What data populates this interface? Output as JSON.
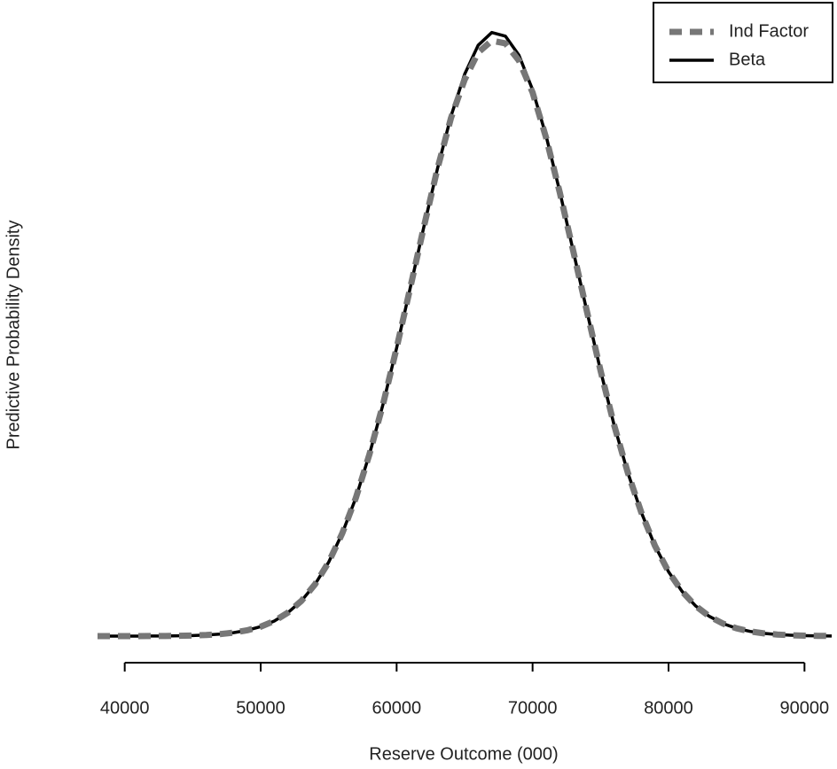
{
  "chart_data": {
    "type": "line",
    "x_label": "Reserve Outcome (000)",
    "y_label": "Predictive Probability Density",
    "x": [
      38000,
      39000,
      40000,
      41000,
      42000,
      43000,
      44000,
      45000,
      46000,
      47000,
      48000,
      49000,
      50000,
      51000,
      52000,
      53000,
      54000,
      55000,
      56000,
      57000,
      58000,
      59000,
      60000,
      61000,
      62000,
      63000,
      64000,
      65000,
      66000,
      67000,
      68000,
      69000,
      70000,
      71000,
      72000,
      73000,
      74000,
      75000,
      76000,
      77000,
      78000,
      79000,
      80000,
      81000,
      82000,
      83000,
      84000,
      85000,
      86000,
      87000,
      88000,
      89000,
      90000,
      91000,
      92000
    ],
    "series": [
      {
        "name": "Beta",
        "color": "#000000",
        "line_style": "solid",
        "values": [
          4.4e-10,
          9.8e-10,
          2.1e-09,
          4.5e-09,
          9.2e-09,
          1.8e-08,
          3.5e-08,
          6.6e-08,
          1.22e-07,
          2.18e-07,
          3.78e-07,
          6.36e-07,
          1.04e-06,
          1.66e-06,
          2.58e-06,
          3.88e-06,
          5.7e-06,
          8.13e-06,
          1.13e-05,
          1.52e-05,
          2e-05,
          2.55e-05,
          3.17e-05,
          3.83e-05,
          4.5e-05,
          5.14e-05,
          5.72e-05,
          6.18e-05,
          6.5e-05,
          6.64e-05,
          6.6e-05,
          6.39e-05,
          6.01e-05,
          5.5e-05,
          4.89e-05,
          4.23e-05,
          3.57e-05,
          2.92e-05,
          2.32e-05,
          1.8e-05,
          1.36e-05,
          9.94e-06,
          7.08e-06,
          4.91e-06,
          3.31e-06,
          2.17e-06,
          1.38e-06,
          8.58e-07,
          5.17e-07,
          3.03e-07,
          1.73e-07,
          9.6e-08,
          5.2e-08,
          2.7e-08,
          1.4e-08
        ]
      },
      {
        "name": "Ind Factor",
        "color": "#777777",
        "line_style": "dashed",
        "values": [
          4.4e-10,
          9.8e-10,
          2.1e-09,
          4.5e-09,
          9.2e-09,
          1.8e-08,
          3.5e-08,
          6.6e-08,
          1.22e-07,
          2.18e-07,
          3.78e-07,
          6.36e-07,
          1.04e-06,
          1.66e-06,
          2.58e-06,
          3.88e-06,
          5.7e-06,
          8.13e-06,
          1.13e-05,
          1.52e-05,
          2e-05,
          2.55e-05,
          3.17e-05,
          3.83e-05,
          4.5e-05,
          5.14e-05,
          5.7e-05,
          6.12e-05,
          6.42e-05,
          6.55e-05,
          6.52e-05,
          6.33e-05,
          5.98e-05,
          5.48e-05,
          4.88e-05,
          4.23e-05,
          3.57e-05,
          2.92e-05,
          2.32e-05,
          1.8e-05,
          1.36e-05,
          9.94e-06,
          7.08e-06,
          4.91e-06,
          3.31e-06,
          2.17e-06,
          1.38e-06,
          8.58e-07,
          5.17e-07,
          3.03e-07,
          1.73e-07,
          9.6e-08,
          5.2e-08,
          2.7e-08,
          1.4e-08
        ]
      }
    ],
    "legend_order": [
      1,
      0
    ],
    "xlim": [
      38000,
      92000
    ],
    "xticks": [
      40000,
      50000,
      60000,
      70000,
      80000,
      90000
    ],
    "ylim": [
      0,
      6.9e-05
    ],
    "legend": "top-right",
    "grid": false
  }
}
